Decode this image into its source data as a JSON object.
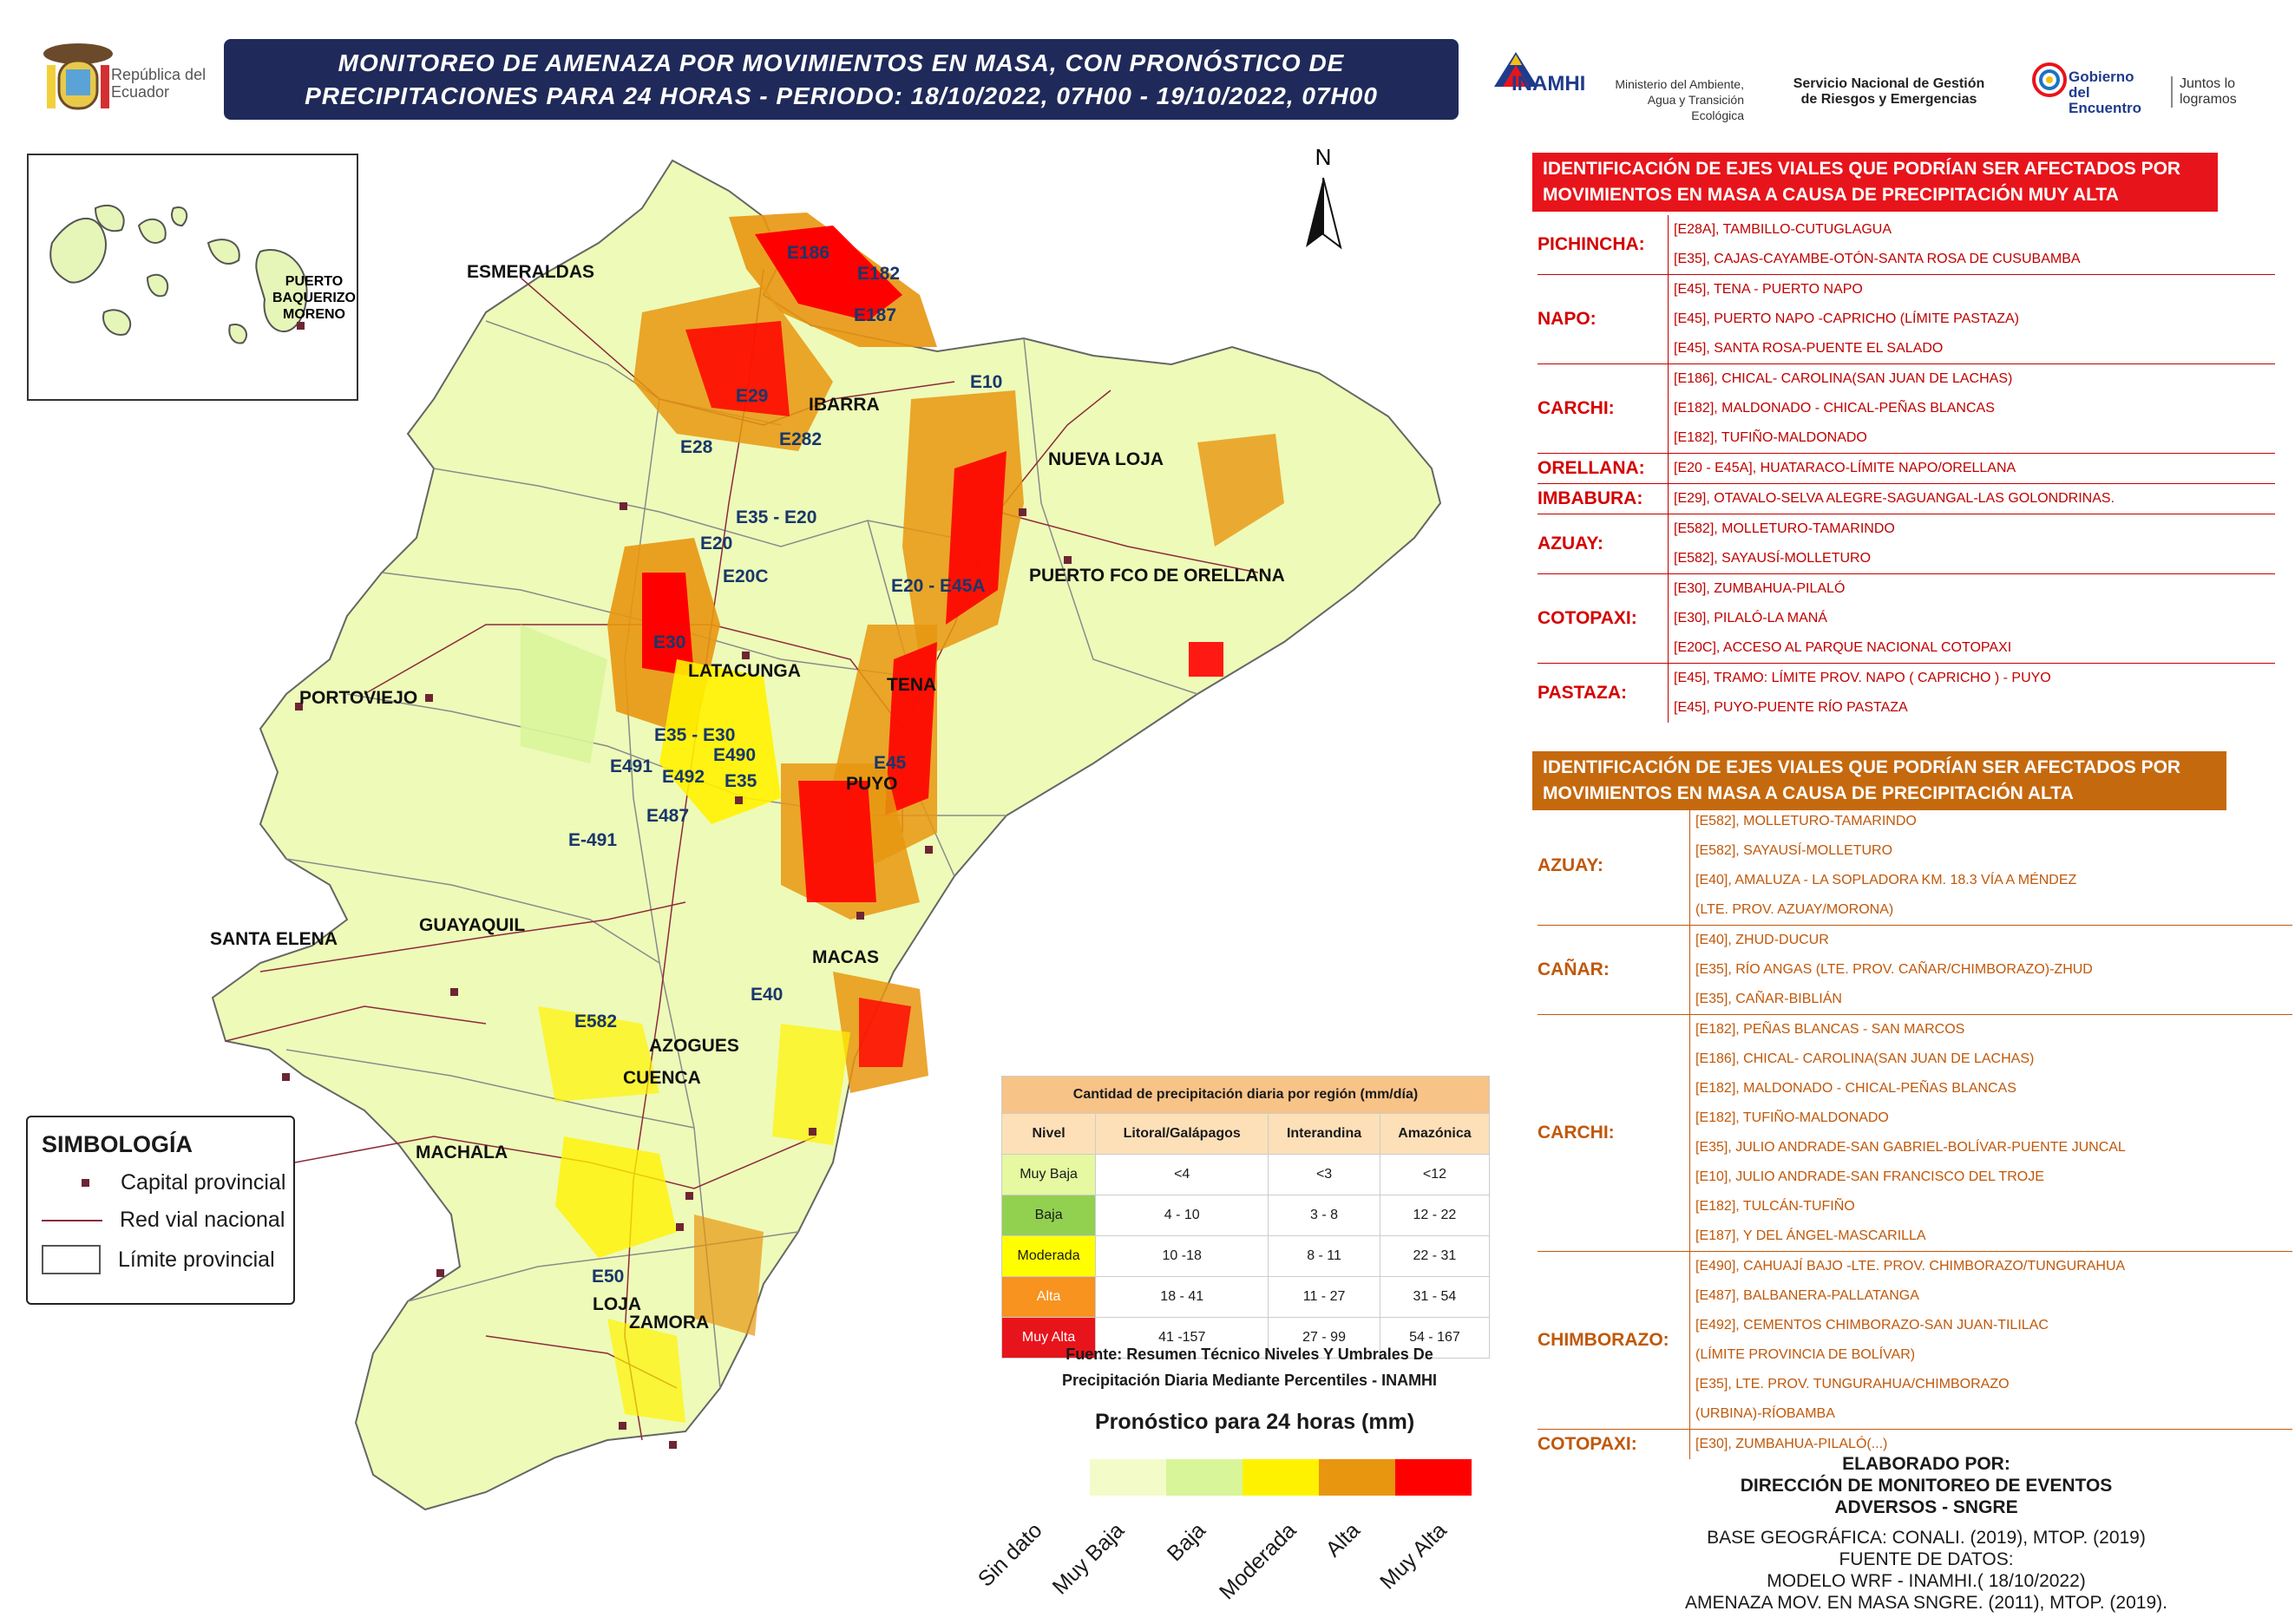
{
  "header": {
    "title_line1": "MONITOREO DE AMENAZA POR MOVIMIENTOS EN MASA, CON PRONÓSTICO DE",
    "title_line2": "PRECIPITACIONES PARA 24 HORAS - PERIODO: 18/10/2022, 07H00 - 19/10/2022, 07H00",
    "logo_republica": "República del Ecuador",
    "logo_inamhi": "INAMHI",
    "logo_ministerio": "Ministerio del Ambiente, Agua y Transición Ecológica",
    "logo_sngre": "Servicio Nacional de Gestión de Riesgos y Emergencias",
    "logo_gobierno": "Gobierno del Encuentro",
    "logo_juntos": "Juntos lo logramos"
  },
  "map": {
    "north": "N",
    "galapagos_label": "PUERTO BAQUERIZO MORENO",
    "cities": [
      "ESMERALDAS",
      "IBARRA",
      "NUEVA LOJA",
      "PUERTO FCO DE ORELLANA",
      "LATACUNGA",
      "TENA",
      "PUYO",
      "PORTOVIEJO",
      "SANTA ELENA",
      "GUAYAQUIL",
      "MACAS",
      "AZOGUES",
      "CUENCA",
      "MACHALA",
      "LOJA",
      "ZAMORA"
    ],
    "roads": [
      "E186",
      "E182",
      "E187",
      "E10",
      "E29",
      "E282",
      "E28",
      "E35 - E20",
      "E20",
      "E20C",
      "E20 - E45A",
      "E30",
      "E35 - E30",
      "E491",
      "E490",
      "E492",
      "E35",
      "E45",
      "E487",
      "E-491",
      "E40",
      "E582",
      "E50"
    ]
  },
  "muy_alta": {
    "header": "IDENTIFICACIÓN DE EJES VIALES QUE PODRÍAN SER AFECTADOS POR MOVIMIENTOS EN MASA A CAUSA DE PRECIPITACIÓN MUY ALTA",
    "color": "#e8141b",
    "groups": [
      {
        "province": "PICHINCHA:",
        "items": [
          "[E28A], TAMBILLO-CUTUGLAGUA",
          "[E35], CAJAS-CAYAMBE-OTÓN-SANTA ROSA DE CUSUBAMBA"
        ]
      },
      {
        "province": "NAPO:",
        "items": [
          "[E45], TENA - PUERTO NAPO",
          "[E45], PUERTO NAPO -CAPRICHO (LÍMITE PASTAZA)",
          "[E45], SANTA ROSA-PUENTE EL SALADO"
        ]
      },
      {
        "province": "CARCHI:",
        "items": [
          "[E186], CHICAL- CAROLINA(SAN JUAN DE LACHAS)",
          "[E182], MALDONADO - CHICAL-PEÑAS BLANCAS",
          "[E182], TUFIÑO-MALDONADO"
        ]
      },
      {
        "province": "ORELLANA:",
        "items": [
          "[E20 - E45A], HUATARACO-LÍMITE NAPO/ORELLANA"
        ]
      },
      {
        "province": "IMBABURA:",
        "items": [
          "[E29], OTAVALO-SELVA ALEGRE-SAGUANGAL-LAS GOLONDRINAS."
        ]
      },
      {
        "province": "AZUAY:",
        "items": [
          "[E582], MOLLETURO-TAMARINDO",
          "[E582], SAYAUSÍ-MOLLETURO"
        ]
      },
      {
        "province": "COTOPAXI:",
        "items": [
          "[E30], ZUMBAHUA-PILALÓ",
          "[E30], PILALÓ-LA MANÁ",
          "[E20C], ACCESO AL PARQUE NACIONAL COTOPAXI"
        ]
      },
      {
        "province": "PASTAZA:",
        "items": [
          "[E45], TRAMO: LÍMITE PROV. NAPO ( CAPRICHO ) - PUYO",
          "[E45], PUYO-PUENTE RÍO PASTAZA"
        ]
      }
    ]
  },
  "alta": {
    "header": "IDENTIFICACIÓN DE EJES VIALES QUE PODRÍAN SER AFECTADOS POR MOVIMIENTOS EN MASA A CAUSA DE PRECIPITACIÓN ALTA",
    "color": "#c5690f",
    "groups": [
      {
        "province": "AZUAY:",
        "items": [
          "[E582], MOLLETURO-TAMARINDO",
          "[E582], SAYAUSÍ-MOLLETURO",
          "[E40], AMALUZA - LA SOPLADORA KM. 18.3 VÍA A MÉNDEZ",
          "(LTE. PROV. AZUAY/MORONA)"
        ]
      },
      {
        "province": "CAÑAR:",
        "items": [
          "[E40], ZHUD-DUCUR",
          "[E35], RÍO ANGAS (LTE. PROV. CAÑAR/CHIMBORAZO)-ZHUD",
          "[E35], CAÑAR-BIBLIÁN"
        ]
      },
      {
        "province": "CARCHI:",
        "items": [
          "[E182], PEÑAS BLANCAS - SAN MARCOS",
          "[E186], CHICAL- CAROLINA(SAN JUAN DE LACHAS)",
          "[E182], MALDONADO - CHICAL-PEÑAS BLANCAS",
          "[E182], TUFIÑO-MALDONADO",
          "[E35], JULIO ANDRADE-SAN GABRIEL-BOLÍVAR-PUENTE JUNCAL",
          "[E10], JULIO ANDRADE-SAN FRANCISCO DEL TROJE",
          "[E182], TULCÁN-TUFIÑO",
          "[E187], Y DEL ÁNGEL-MASCARILLA"
        ]
      },
      {
        "province": "CHIMBORAZO:",
        "items": [
          "[E490], CAHUAJÍ BAJO -LTE. PROV. CHIMBORAZO/TUNGURAHUA",
          "[E487], BALBANERA-PALLATANGA",
          "[E492], CEMENTOS CHIMBORAZO-SAN JUAN-TILILAC",
          "(LÍMITE PROVINCIA DE BOLÍVAR)",
          "[E35], LTE. PROV. TUNGURAHUA/CHIMBORAZO",
          " (URBINA)-RÍOBAMBA"
        ]
      },
      {
        "province": "COTOPAXI:",
        "items": [
          "[E30], ZUMBAHUA-PILALÓ(...)"
        ]
      }
    ]
  },
  "simbologia": {
    "title": "SIMBOLOGÍA",
    "capital": "Capital provincial",
    "red_vial": "Red vial nacional",
    "limite": "Límite provincial"
  },
  "thresholds": {
    "title": "Cantidad de precipitación diaria por región (mm/día)",
    "columns": [
      "Nivel",
      "Litoral/Galápagos",
      "Interandina",
      "Amazónica"
    ],
    "rows": [
      {
        "nivel": "Muy Baja",
        "color": "#e6f8a0",
        "lit": "<4",
        "int": "<3",
        "ama": "<12"
      },
      {
        "nivel": "Baja",
        "color": "#92d050",
        "lit": "4 - 10",
        "int": "3 - 8",
        "ama": "12 - 22"
      },
      {
        "nivel": "Moderada",
        "color": "#ffff00",
        "lit": "10 -18",
        "int": "8 - 11",
        "ama": "22 - 31"
      },
      {
        "nivel": "Alta",
        "color": "#f7931e",
        "lit": "18 - 41",
        "int": "11 - 27",
        "ama": "31 - 54"
      },
      {
        "nivel": "Muy Alta",
        "color": "#e8141b",
        "lit": "41 -157",
        "int": "27 - 99",
        "ama": "54 - 167"
      }
    ],
    "source": "Fuente: Resumen Técnico Niveles Y Umbrales De Precipitación Diaria Mediante Percentiles - INAMHI"
  },
  "forecast_legend": {
    "title": "Pronóstico para 24 horas (mm)",
    "classes": [
      {
        "label": "Sin dato",
        "color": "#f3fbc8"
      },
      {
        "label": "Muy Baja",
        "color": "#d8f59a"
      },
      {
        "label": "Baja",
        "color": "#fff200"
      },
      {
        "label": "Moderada",
        "color": "#e8960f"
      },
      {
        "label": "Alta",
        "color": "#ff0000"
      },
      {
        "label": "Muy Alta",
        "color": "#ff0000"
      }
    ]
  },
  "credits": {
    "elaborado": "ELABORADO POR:",
    "direccion": "DIRECCIÓN DE MONITOREO DE EVENTOS",
    "adversos": "ADVERSOS - SNGRE",
    "base": "BASE GEOGRÁFICA: CONALI. (2019), MTOP. (2019)",
    "fuente": "FUENTE DE DATOS:",
    "modelo": "MODELO WRF - INAMHI.( 18/10/2022)",
    "amenaza": "AMENAZA MOV. EN MASA SNGRE. (2011), MTOP. (2019)."
  }
}
